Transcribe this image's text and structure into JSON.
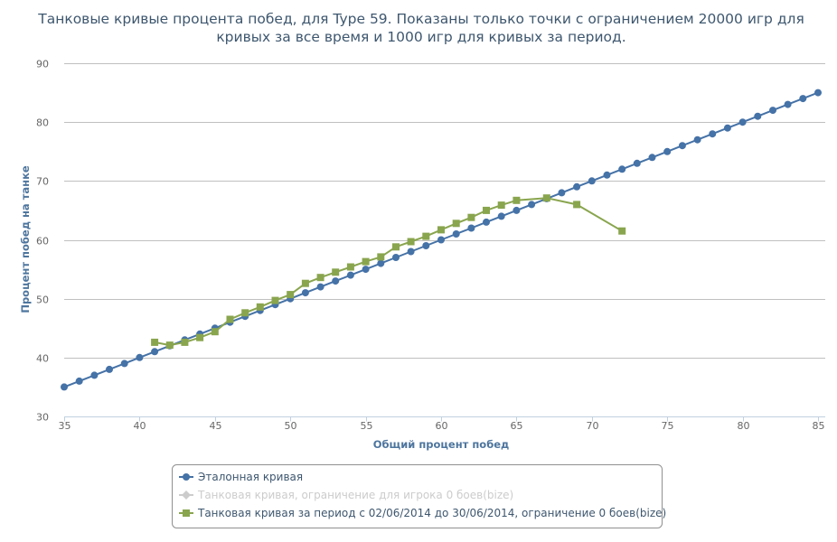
{
  "chart_data": {
    "type": "line",
    "title_lines": [
      "Танковые кривые процента побед, для Type 59. Показаны только точки с ограничением 20000 игр для",
      "кривых за все время и 1000 игр для кривых за период."
    ],
    "xlabel": "Общий процент побед",
    "ylabel": "Процент побед на танке",
    "xlim": [
      35,
      85
    ],
    "ylim": [
      30,
      90
    ],
    "x_ticks": [
      35,
      40,
      45,
      50,
      55,
      60,
      65,
      70,
      75,
      80,
      85
    ],
    "y_ticks": [
      30,
      40,
      50,
      60,
      70,
      80,
      90
    ],
    "grid": true,
    "legend_position": "bottom",
    "series": [
      {
        "name": "Эталонная кривая",
        "marker": "circle",
        "color": "#4572a7",
        "visible": true,
        "x": [
          35,
          36,
          37,
          38,
          39,
          40,
          41,
          42,
          43,
          44,
          45,
          46,
          47,
          48,
          49,
          50,
          51,
          52,
          53,
          54,
          55,
          56,
          57,
          58,
          59,
          60,
          61,
          62,
          63,
          64,
          65,
          66,
          67,
          68,
          69,
          70,
          71,
          72,
          73,
          74,
          75,
          76,
          77,
          78,
          79,
          80,
          81,
          82,
          83,
          84,
          85
        ],
        "y": [
          35,
          36,
          37,
          38,
          39,
          40,
          41,
          42,
          43,
          44,
          45,
          46,
          47,
          48,
          49,
          50,
          51,
          52,
          53,
          54,
          55,
          56,
          57,
          58,
          59,
          60,
          61,
          62,
          63,
          64,
          65,
          66,
          67,
          68,
          69,
          70,
          71,
          72,
          73,
          74,
          75,
          76,
          77,
          78,
          79,
          80,
          81,
          82,
          83,
          84,
          85
        ]
      },
      {
        "name": "Танковая кривая, ограничение для игрока 0 боев(bize)",
        "marker": "diamond",
        "color": "#cccccc",
        "visible": false,
        "x": [],
        "y": []
      },
      {
        "name": "Танковая кривая за период с 02/06/2014 до 30/06/2014, ограничение 0 боев(bize)",
        "marker": "square",
        "color": "#89a54e",
        "visible": true,
        "x": [
          41,
          42,
          43,
          44,
          45,
          46,
          47,
          48,
          49,
          50,
          51,
          52,
          53,
          54,
          55,
          56,
          57,
          58,
          59,
          60,
          61,
          62,
          63,
          64,
          65,
          67,
          69,
          72
        ],
        "y": [
          42.6,
          42.1,
          42.6,
          43.4,
          44.4,
          46.5,
          47.6,
          48.6,
          49.7,
          50.7,
          52.6,
          53.6,
          54.5,
          55.4,
          56.3,
          57.1,
          58.8,
          59.7,
          60.6,
          61.7,
          62.8,
          63.8,
          65.0,
          65.9,
          66.7,
          67.1,
          66.0,
          61.5
        ]
      }
    ]
  }
}
